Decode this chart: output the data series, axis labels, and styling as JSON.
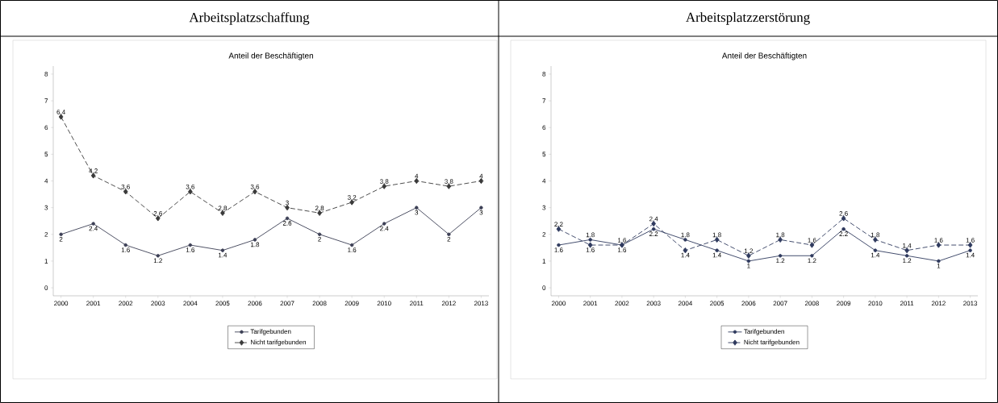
{
  "chart_data": [
    {
      "type": "line",
      "title": "Arbeitsplatzschaffung",
      "subtitle": "Anteil der Beschäftigten",
      "categories": [
        "2000",
        "2001",
        "2002",
        "2003",
        "2004",
        "2005",
        "2006",
        "2007",
        "2008",
        "2009",
        "2010",
        "2011",
        "2012",
        "2013"
      ],
      "ylim": [
        -0.3,
        8.3
      ],
      "yticks": [
        0,
        1,
        2,
        3,
        4,
        5,
        6,
        7,
        8
      ],
      "legend": "bottom",
      "series": [
        {
          "name": "Tarifgebunden",
          "color": "#3c3f55",
          "marker": "circle",
          "line_style": "solid",
          "values": [
            2,
            2.4,
            1.6,
            1.2,
            1.6,
            1.4,
            1.8,
            2.6,
            2,
            1.6,
            2.4,
            3,
            2,
            3
          ],
          "value_labels": [
            "2",
            "2.4",
            "1.6",
            "1.2",
            "1.6",
            "1.4",
            "1.8",
            "2.6",
            "2",
            "1.6",
            "2.4",
            "3",
            "2",
            "3"
          ]
        },
        {
          "name": "Nicht tarifgebunden",
          "color": "#3a3a3a",
          "marker": "diamond",
          "line_style": "dashed",
          "values": [
            6.4,
            4.2,
            3.6,
            2.6,
            3.6,
            2.8,
            3.6,
            3,
            2.8,
            3.2,
            3.8,
            4,
            3.8,
            4
          ],
          "value_labels": [
            "6.4",
            "4.2",
            "3.6",
            "2.6",
            "3.6",
            "2.8",
            "3.6",
            "3",
            "2.8",
            "3.2",
            "3.8",
            "4",
            "3.8",
            "4"
          ]
        }
      ]
    },
    {
      "type": "line",
      "title": "Arbeitsplatzzerstörung",
      "subtitle": "Anteil der Beschäftigten",
      "categories": [
        "2000",
        "2001",
        "2002",
        "2003",
        "2004",
        "2005",
        "2006",
        "2007",
        "2008",
        "2009",
        "2010",
        "2011",
        "2012",
        "2013"
      ],
      "ylim": [
        -0.3,
        8.3
      ],
      "yticks": [
        0,
        1,
        2,
        3,
        4,
        5,
        6,
        7,
        8
      ],
      "legend": "bottom",
      "series": [
        {
          "name": "Tarifgebunden",
          "color": "#2f3a5e",
          "marker": "circle",
          "line_style": "solid",
          "values": [
            1.6,
            1.8,
            1.6,
            2.2,
            1.8,
            1.4,
            1,
            1.2,
            1.2,
            2.2,
            1.4,
            1.2,
            1,
            1.4
          ],
          "value_labels": [
            "1.6",
            "1.8",
            "1.6",
            "2.2",
            "1.8",
            "1.4",
            "1",
            "1.2",
            "1.2",
            "2.2",
            "1.4",
            "1.2",
            "1",
            "1.4"
          ]
        },
        {
          "name": "Nicht tarifgebunden",
          "color": "#2f3a5e",
          "marker": "diamond",
          "line_style": "dashed",
          "values": [
            2.2,
            1.6,
            1.6,
            2.4,
            1.4,
            1.8,
            1.2,
            1.8,
            1.6,
            2.6,
            1.8,
            1.4,
            1.6,
            1.6
          ],
          "value_labels": [
            "2.2",
            "1.6",
            "1.6",
            "2.4",
            "1.4",
            "1.8",
            "1.2",
            "1.8",
            "1.6",
            "2.6",
            "1.8",
            "1.4",
            "1.6",
            "1.6"
          ]
        }
      ]
    }
  ]
}
